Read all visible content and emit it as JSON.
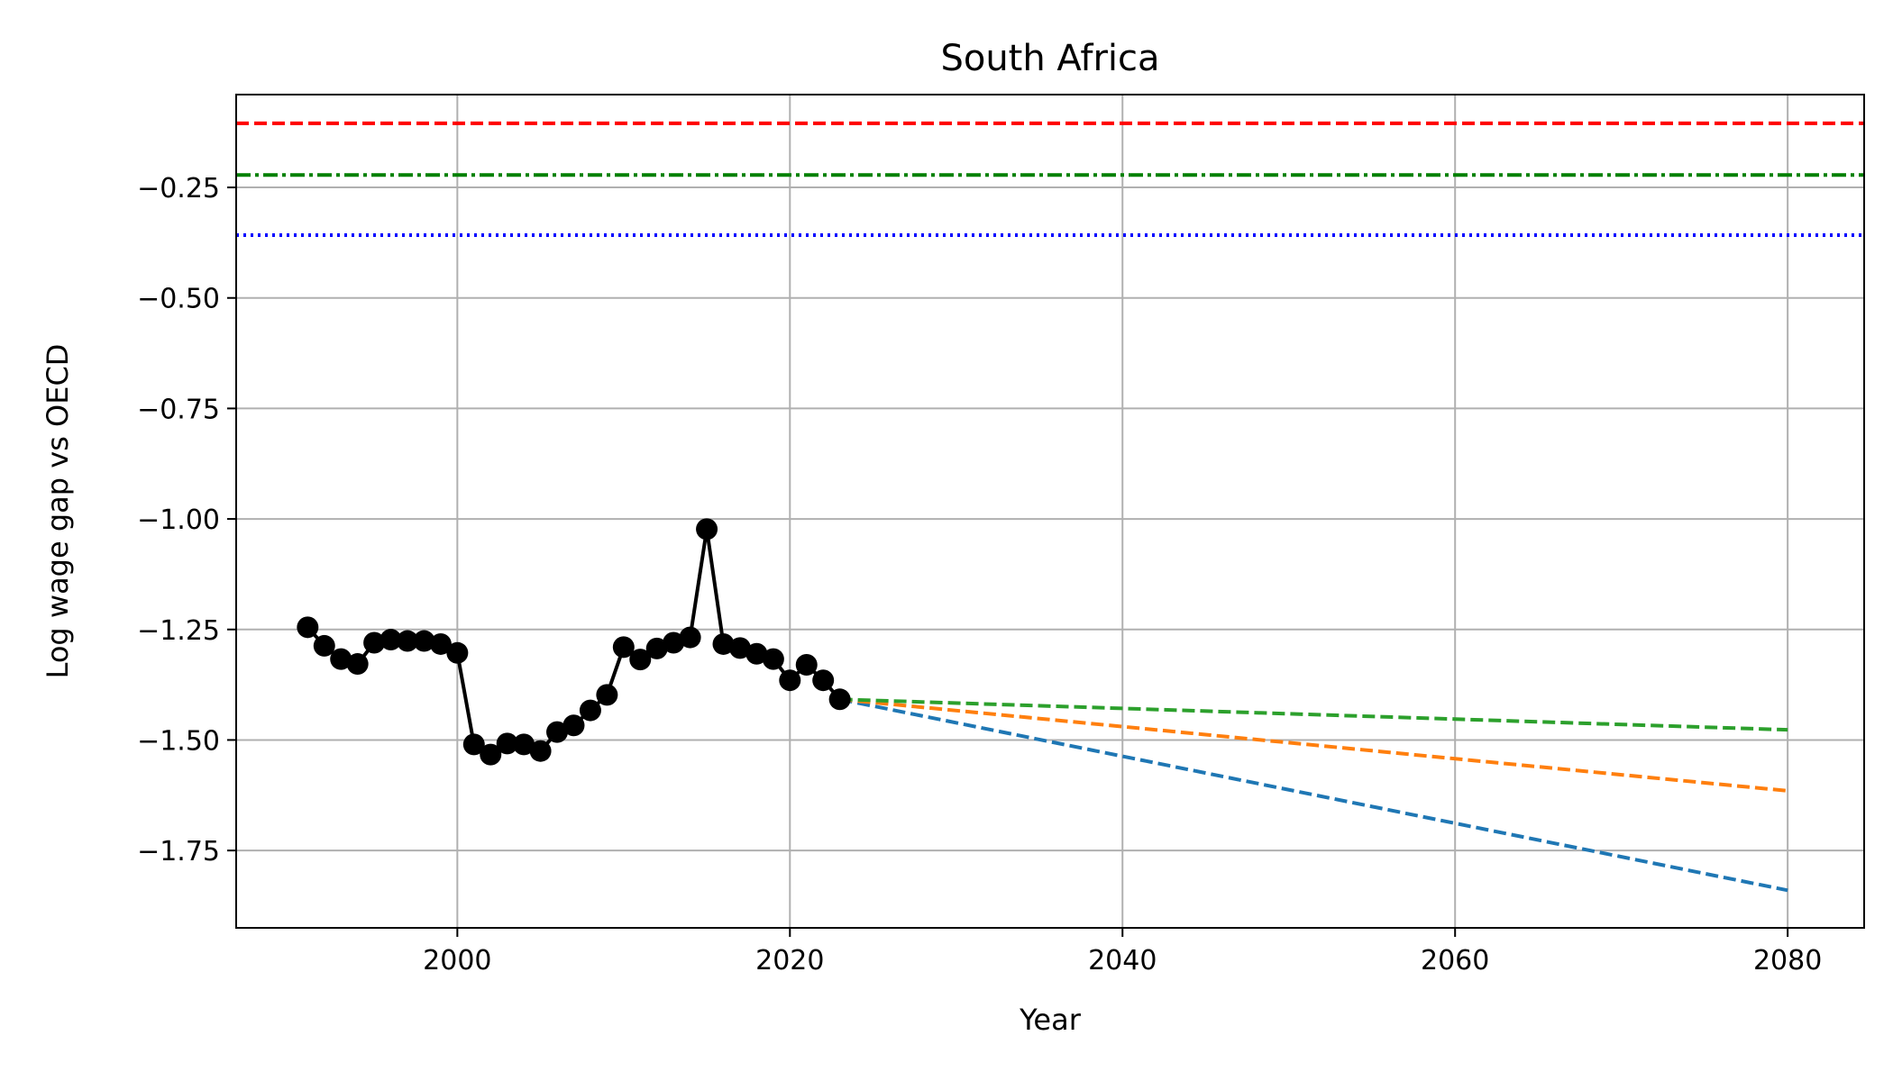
{
  "chart_data": {
    "type": "line",
    "title": "South Africa",
    "xlabel": "Year",
    "ylabel": "Log wage gap vs OECD",
    "xlim": [
      1986.7,
      2084.6
    ],
    "ylim": [
      -1.925,
      -0.04
    ],
    "xticks": [
      2000,
      2020,
      2040,
      2060,
      2080
    ],
    "xtick_labels": [
      "2000",
      "2020",
      "2040",
      "2060",
      "2080"
    ],
    "yticks": [
      -0.25,
      -0.5,
      -0.75,
      -1.0,
      -1.25,
      -1.5,
      -1.75
    ],
    "ytick_labels": [
      "−0.25",
      "−0.50",
      "−0.75",
      "−1.00",
      "−1.25",
      "−1.50",
      "−1.75"
    ],
    "grid": true,
    "historical": {
      "color": "#000000",
      "marker": "circle",
      "x": [
        1991,
        1992,
        1993,
        1994,
        1995,
        1996,
        1997,
        1998,
        1999,
        2000,
        2001,
        2002,
        2003,
        2004,
        2005,
        2006,
        2007,
        2008,
        2009,
        2010,
        2011,
        2012,
        2013,
        2014,
        2015,
        2016,
        2017,
        2018,
        2019,
        2020,
        2021,
        2022,
        2023
      ],
      "y": [
        -1.245,
        -1.287,
        -1.317,
        -1.328,
        -1.28,
        -1.273,
        -1.276,
        -1.276,
        -1.283,
        -1.303,
        -1.51,
        -1.533,
        -1.508,
        -1.51,
        -1.525,
        -1.482,
        -1.467,
        -1.433,
        -1.398,
        -1.29,
        -1.318,
        -1.293,
        -1.28,
        -1.268,
        -1.023,
        -1.283,
        -1.292,
        -1.305,
        -1.317,
        -1.365,
        -1.33,
        -1.365,
        -1.408
      ]
    },
    "reference_lines": [
      {
        "y": -0.105,
        "color": "#ff0000",
        "style": "dashed"
      },
      {
        "y": -0.222,
        "color": "#008000",
        "style": "dashdot"
      },
      {
        "y": -0.358,
        "color": "#0000ff",
        "style": "dotted"
      }
    ],
    "projections": [
      {
        "color": "#1f77b4",
        "x": [
          2023,
          2080
        ],
        "y": [
          -1.408,
          -1.84
        ]
      },
      {
        "color": "#ff7f0e",
        "x": [
          2023,
          2080
        ],
        "y": [
          -1.408,
          -1.615
        ]
      },
      {
        "color": "#2ca02c",
        "x": [
          2023,
          2080
        ],
        "y": [
          -1.408,
          -1.477
        ]
      }
    ]
  }
}
